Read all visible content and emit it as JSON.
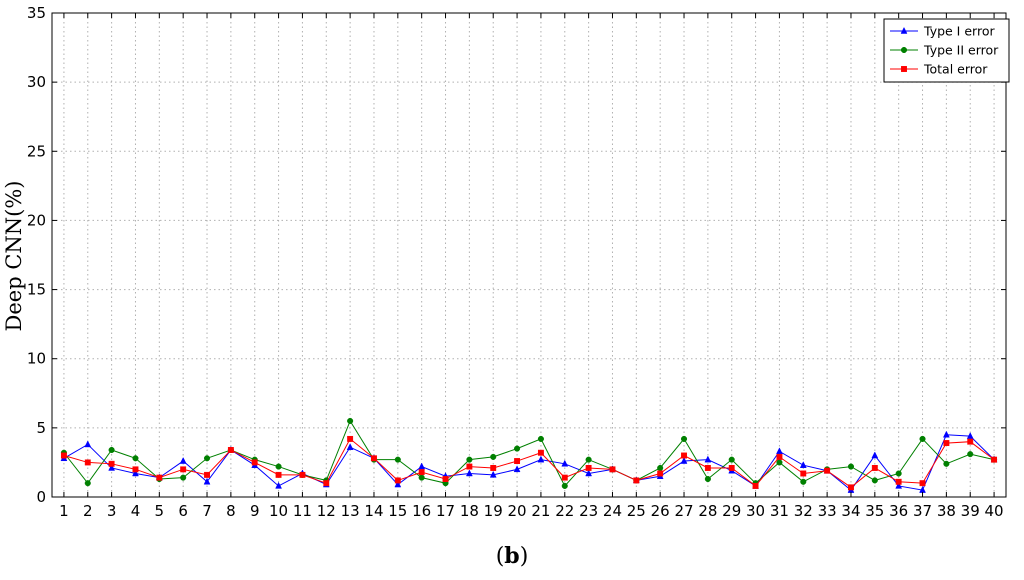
{
  "caption": {
    "open": "(",
    "letter": "b",
    "close": ")"
  },
  "chart_data": {
    "type": "line",
    "title": "",
    "xlabel": "",
    "ylabel": "Deep CNN(%)",
    "x": [
      1,
      2,
      3,
      4,
      5,
      6,
      7,
      8,
      9,
      10,
      11,
      12,
      13,
      14,
      15,
      16,
      17,
      18,
      19,
      20,
      21,
      22,
      23,
      24,
      25,
      26,
      27,
      28,
      29,
      30,
      31,
      32,
      33,
      34,
      35,
      36,
      37,
      38,
      39,
      40
    ],
    "xlim": [
      0.5,
      40.5
    ],
    "ylim": [
      0,
      35
    ],
    "yticks": [
      0,
      5,
      10,
      15,
      20,
      25,
      30,
      35
    ],
    "grid": true,
    "legend_position": "top-right",
    "series": [
      {
        "name": "Type I error",
        "color": "#0000ff",
        "marker": "triangle",
        "values": [
          2.8,
          3.8,
          2.1,
          1.7,
          1.4,
          2.6,
          1.1,
          3.4,
          2.3,
          0.8,
          1.7,
          0.9,
          3.6,
          2.8,
          0.9,
          2.2,
          1.5,
          1.7,
          1.6,
          2.0,
          2.7,
          2.4,
          1.7,
          2.0,
          1.2,
          1.5,
          2.6,
          2.7,
          1.9,
          0.8,
          3.3,
          2.3,
          1.9,
          0.5,
          3.0,
          0.8,
          0.5,
          4.5,
          4.4,
          2.7
        ]
      },
      {
        "name": "Type II error",
        "color": "#008000",
        "marker": "circle",
        "values": [
          3.2,
          1.0,
          3.4,
          2.8,
          1.3,
          1.4,
          2.8,
          3.4,
          2.7,
          2.2,
          1.6,
          1.2,
          5.5,
          2.7,
          2.7,
          1.4,
          1.0,
          2.7,
          2.9,
          3.5,
          4.2,
          0.8,
          2.7,
          2.0,
          1.2,
          2.1,
          4.2,
          1.3,
          2.7,
          1.0,
          2.5,
          1.1,
          2.0,
          2.2,
          1.2,
          1.7,
          4.2,
          2.4,
          3.1,
          2.7
        ]
      },
      {
        "name": "Total error",
        "color": "#ff0000",
        "marker": "square",
        "values": [
          3.0,
          2.5,
          2.4,
          2.0,
          1.4,
          2.0,
          1.6,
          3.4,
          2.5,
          1.6,
          1.6,
          1.0,
          4.2,
          2.8,
          1.2,
          1.8,
          1.3,
          2.2,
          2.1,
          2.6,
          3.2,
          1.4,
          2.1,
          2.0,
          1.2,
          1.7,
          3.0,
          2.1,
          2.1,
          0.8,
          2.9,
          1.7,
          1.9,
          0.7,
          2.1,
          1.1,
          1.0,
          3.9,
          4.0,
          2.7
        ]
      }
    ]
  }
}
